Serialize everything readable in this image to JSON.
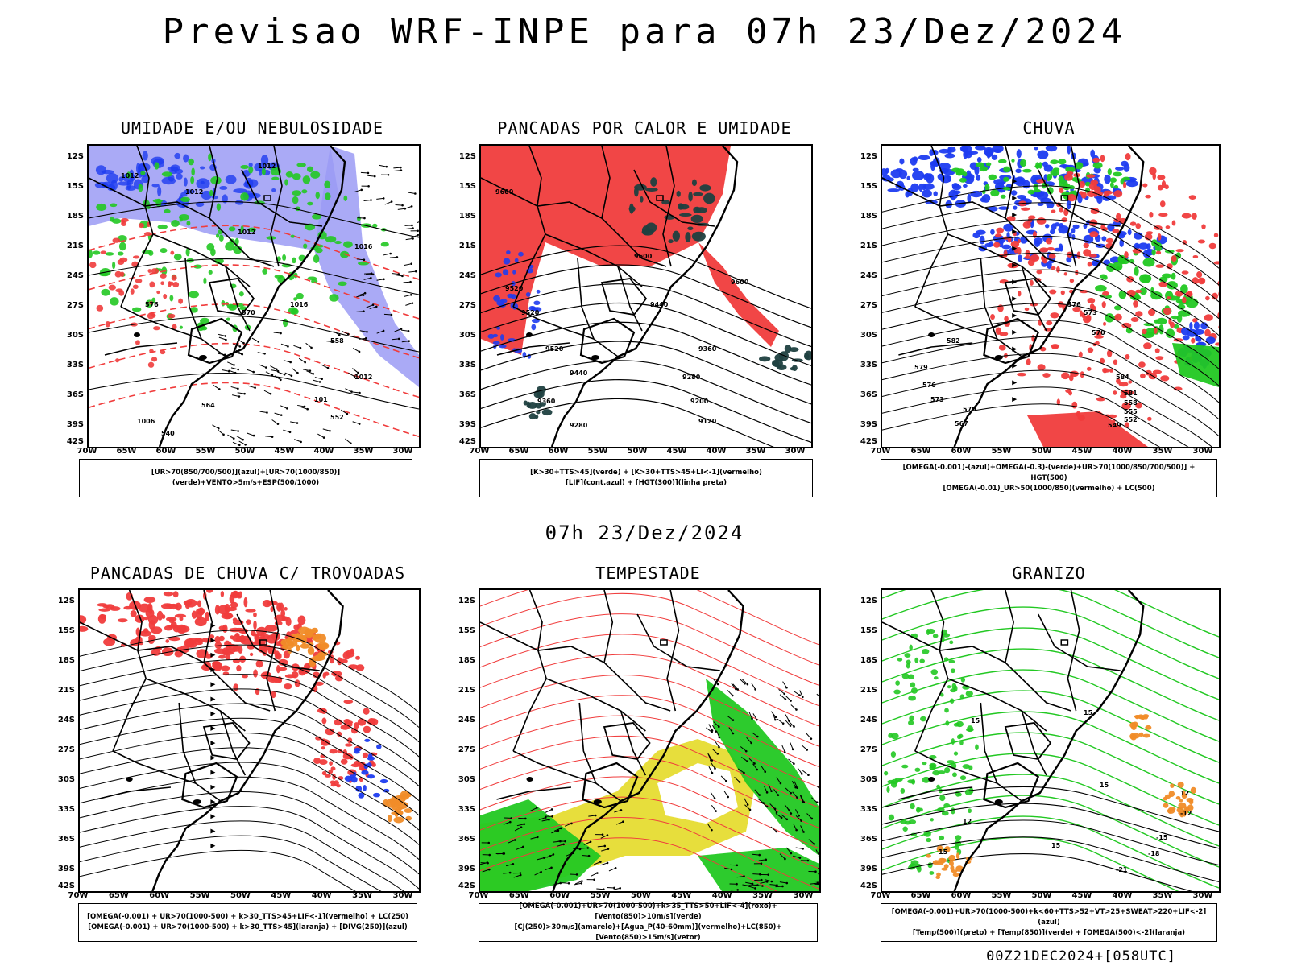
{
  "header": {
    "title": "Previsao WRF-INPE  para 07h 23/Dez/2024"
  },
  "mid_time": "07h 23/Dez/2024",
  "footer_code": "00Z21DEC2024+[058UTC]",
  "axes": {
    "lat_labels": [
      "12S",
      "15S",
      "18S",
      "21S",
      "24S",
      "27S",
      "30S",
      "33S",
      "36S",
      "39S",
      "42S"
    ],
    "lon_labels": [
      "70W",
      "65W",
      "60W",
      "55W",
      "50W",
      "45W",
      "40W",
      "35W",
      "30W"
    ]
  },
  "panels": [
    {
      "id": "umidade",
      "title": "UMIDADE E/OU NEBULOSIDADE",
      "legend": [
        "[UR>70(850/700/500)](azul)+[UR>70(1000/850)](verde)+VENTO>5m/s+ESP(500/1000)"
      ],
      "contour_labels": [
        "1012",
        "1012",
        "1012",
        "1012",
        "1016",
        "1016",
        "1012",
        "101",
        "1006",
        "564",
        "552",
        "540",
        "576",
        "570",
        "558"
      ]
    },
    {
      "id": "pancadas-calor",
      "title": "PANCADAS POR CALOR E UMIDADE",
      "legend": [
        "[K>30+TTS>45](verde) + [K>30+TTS>45+LI<-1](vermelho)",
        "[LIF](cont.azul) + [HGT(300)](linha preta)"
      ],
      "contour_labels": [
        "9600",
        "9600",
        "9600",
        "9520",
        "9520",
        "9520",
        "9440",
        "9440",
        "9360",
        "9360",
        "9280",
        "9280",
        "9200",
        "9120"
      ]
    },
    {
      "id": "chuva",
      "title": "CHUVA",
      "legend": [
        "[OMEGA(-0.001)-(azul)+OMEGA(-0.3)-(verde)+UR>70(1000/850/700/500)] + HGT(500)",
        "[OMEGA(-0.01)_UR>50(1000/850)(vermelho) + LC(500)"
      ],
      "contour_labels": [
        "576",
        "573",
        "570",
        "579",
        "576",
        "573",
        "582",
        "584",
        "581",
        "558",
        "555",
        "552",
        "549",
        "567",
        "570"
      ]
    },
    {
      "id": "trovoadas",
      "title": "PANCADAS DE CHUVA C/ TROVOADAS",
      "legend": [
        "[OMEGA(-0.001) + UR>70(1000-500) + k>30_TTS>45+LIF<-1](vermelho) + LC(250)",
        "[OMEGA(-0.001) + UR>70(1000-500) + k>30_TTS>45](laranja) + [DIVG(250)](azul)"
      ],
      "contour_labels": []
    },
    {
      "id": "tempestade",
      "title": "TEMPESTADE",
      "legend": [
        "[OMEGA(-0.001)+UR>70(1000-500)+k>35_TTS>50+LIF<-4](roxo)+[Vento(850)>10m/s](verde)",
        "[CJ(250)>30m/s](amarelo)+[Agua_P(40-60mm)](vermelho)+LC(850)+[Vento(850)>15m/s](vetor)"
      ],
      "contour_labels": []
    },
    {
      "id": "granizo",
      "title": "GRANIZO",
      "legend": [
        "[OMEGA(-0.001)+UR>70(1000-500)+k<60+TTS>52+VT>25+SWEAT>220+LIF<-2](azul)",
        "[Temp(500)](preto) + [Temp(850)](verde) + [OMEGA(500)<-2](laranja)"
      ],
      "contour_labels": [
        "15",
        "15",
        "12",
        "15",
        "15",
        "12",
        "-12",
        "-15",
        "-18",
        "-21",
        "15"
      ]
    }
  ],
  "colors": {
    "red": "#f03c3c",
    "green": "#22c822",
    "blue": "#1e3cf0",
    "lavender": "#9b9bf5",
    "darkteal": "#1f4040",
    "yellow": "#e6dc32",
    "orange": "#f08c28"
  }
}
